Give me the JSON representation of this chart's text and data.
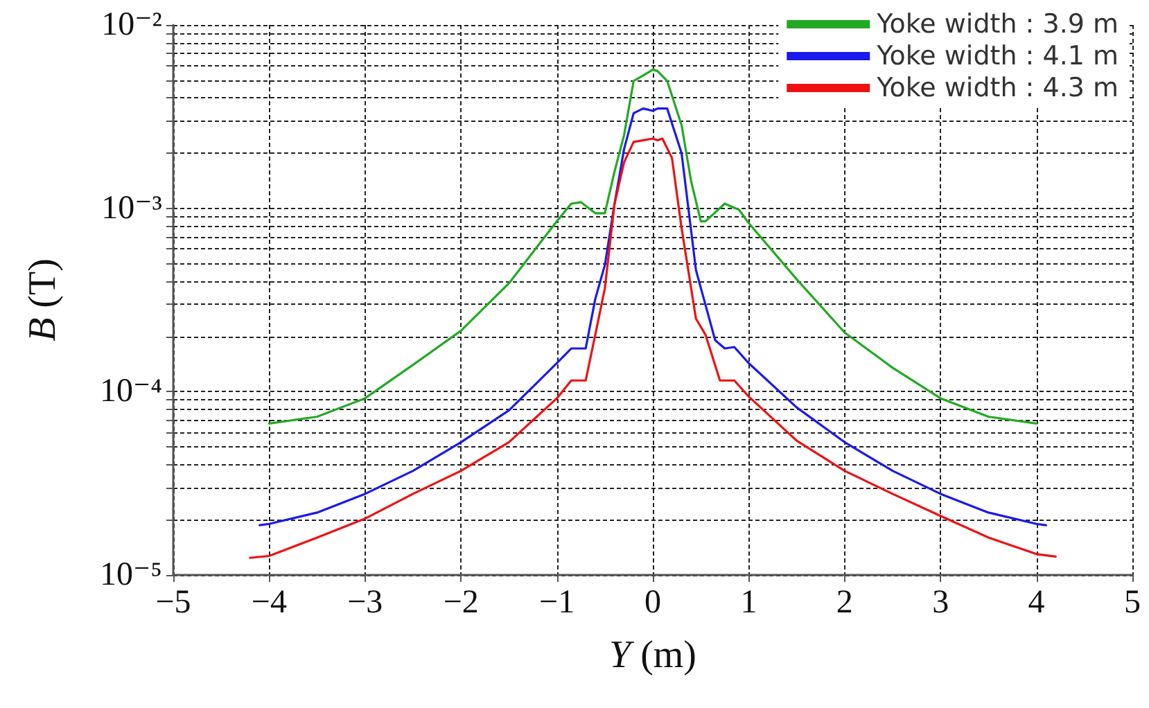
{
  "chart_data": {
    "type": "line",
    "xlabel": "Y (m)",
    "ylabel": "B (T)",
    "xlim": [
      -5,
      5
    ],
    "xticks": [
      -5,
      -4,
      -3,
      -2,
      -1,
      0,
      1,
      2,
      3,
      4,
      5
    ],
    "ylim": [
      1e-05,
      0.01
    ],
    "log": true,
    "yticks": [
      {
        "value": 1e-05,
        "label": "10⁻⁵"
      },
      {
        "value": 2e-05,
        "label": null
      },
      {
        "value": 3e-05,
        "label": null
      },
      {
        "value": 4e-05,
        "label": null
      },
      {
        "value": 5e-05,
        "label": null
      },
      {
        "value": 6e-05,
        "label": null
      },
      {
        "value": 7e-05,
        "label": null
      },
      {
        "value": 8e-05,
        "label": null
      },
      {
        "value": 9e-05,
        "label": null
      },
      {
        "value": 0.0001,
        "label": "10⁻⁴"
      },
      {
        "value": 0.0002,
        "label": null
      },
      {
        "value": 0.0003,
        "label": null
      },
      {
        "value": 0.0004,
        "label": null
      },
      {
        "value": 0.0005,
        "label": null
      },
      {
        "value": 0.0006,
        "label": null
      },
      {
        "value": 0.0007,
        "label": null
      },
      {
        "value": 0.0008,
        "label": null
      },
      {
        "value": 0.0009,
        "label": null
      },
      {
        "value": 0.001,
        "label": "10⁻³"
      },
      {
        "value": 0.002,
        "label": null
      },
      {
        "value": 0.003,
        "label": null
      },
      {
        "value": 0.004,
        "label": null
      },
      {
        "value": 0.005,
        "label": null
      },
      {
        "value": 0.006,
        "label": null
      },
      {
        "value": 0.007,
        "label": null
      },
      {
        "value": 0.008,
        "label": null
      },
      {
        "value": 0.009,
        "label": null
      },
      {
        "value": 0.01,
        "label": "10⁻²"
      }
    ],
    "grid": true,
    "legend": "top right",
    "marker": "none",
    "line_style": "solid",
    "series": [
      {
        "name": "Yoke width : 3.9 m",
        "color": "#22aa22",
        "x": [
          -4,
          -3.5,
          -3,
          -2.5,
          -2,
          -1.5,
          -1,
          -0.85,
          -0.75,
          -0.6,
          -0.5,
          -0.4,
          -0.3,
          -0.2,
          -0.1,
          0,
          0.05,
          0.15,
          0.3,
          0.4,
          0.5,
          0.55,
          0.75,
          0.9,
          1,
          1.5,
          2,
          2.5,
          3,
          3.5,
          4
        ],
        "values": [
          6.7e-05,
          7.3e-05,
          9.2e-05,
          0.00014,
          0.000215,
          0.00039,
          0.00085,
          0.00106,
          0.00108,
          0.00094,
          0.00094,
          0.00158,
          0.0025,
          0.00495,
          0.0053,
          0.0057,
          0.0056,
          0.00495,
          0.00284,
          0.0014,
          0.00085,
          0.00085,
          0.00106,
          0.00098,
          0.00083,
          0.00041,
          0.00021,
          0.000135,
          9.2e-05,
          7.3e-05,
          6.7e-05
        ]
      },
      {
        "name": "Yoke width : 4.1 m",
        "color": "#1a1aee",
        "x": [
          -4.1,
          -4,
          -3.5,
          -3,
          -2.5,
          -2,
          -1.5,
          -1,
          -0.85,
          -0.7,
          -0.6,
          -0.5,
          -0.4,
          -0.3,
          -0.2,
          -0.1,
          0,
          0.05,
          0.15,
          0.3,
          0.45,
          0.65,
          0.75,
          0.85,
          1,
          1.5,
          2,
          2.5,
          3,
          3.5,
          4,
          4.1
        ],
        "values": [
          1.87e-05,
          1.9e-05,
          2.19e-05,
          2.77e-05,
          3.7e-05,
          5.3e-05,
          7.9e-05,
          0.000143,
          0.000172,
          0.000172,
          0.00032,
          0.00049,
          0.00105,
          0.0021,
          0.0033,
          0.0035,
          0.0034,
          0.0035,
          0.0035,
          0.002,
          0.00046,
          0.000191,
          0.000172,
          0.000175,
          0.000143,
          8.2e-05,
          5.3e-05,
          3.7e-05,
          2.77e-05,
          2.19e-05,
          1.9e-05,
          1.87e-05
        ]
      },
      {
        "name": "Yoke width : 4.3 m",
        "color": "#ee1111",
        "x": [
          -4.2,
          -4,
          -3.5,
          -3,
          -2.5,
          -2,
          -1.5,
          -1,
          -0.85,
          -0.7,
          -0.6,
          -0.5,
          -0.4,
          -0.3,
          -0.2,
          0,
          0.05,
          0.1,
          0.2,
          0.3,
          0.45,
          0.55,
          0.7,
          0.85,
          1,
          1.5,
          2,
          2.5,
          3,
          3.5,
          4,
          4.2
        ],
        "values": [
          1.24e-05,
          1.27e-05,
          1.6e-05,
          2.03e-05,
          2.77e-05,
          3.7e-05,
          5.3e-05,
          9.2e-05,
          0.000115,
          0.000115,
          0.000204,
          0.000366,
          0.00105,
          0.00178,
          0.0023,
          0.0024,
          0.00235,
          0.0024,
          0.00188,
          0.00078,
          0.00025,
          0.000204,
          0.000115,
          0.000115,
          9.4e-05,
          5.4e-05,
          3.7e-05,
          2.77e-05,
          2.1e-05,
          1.6e-05,
          1.3e-05,
          1.26e-05
        ]
      }
    ]
  }
}
